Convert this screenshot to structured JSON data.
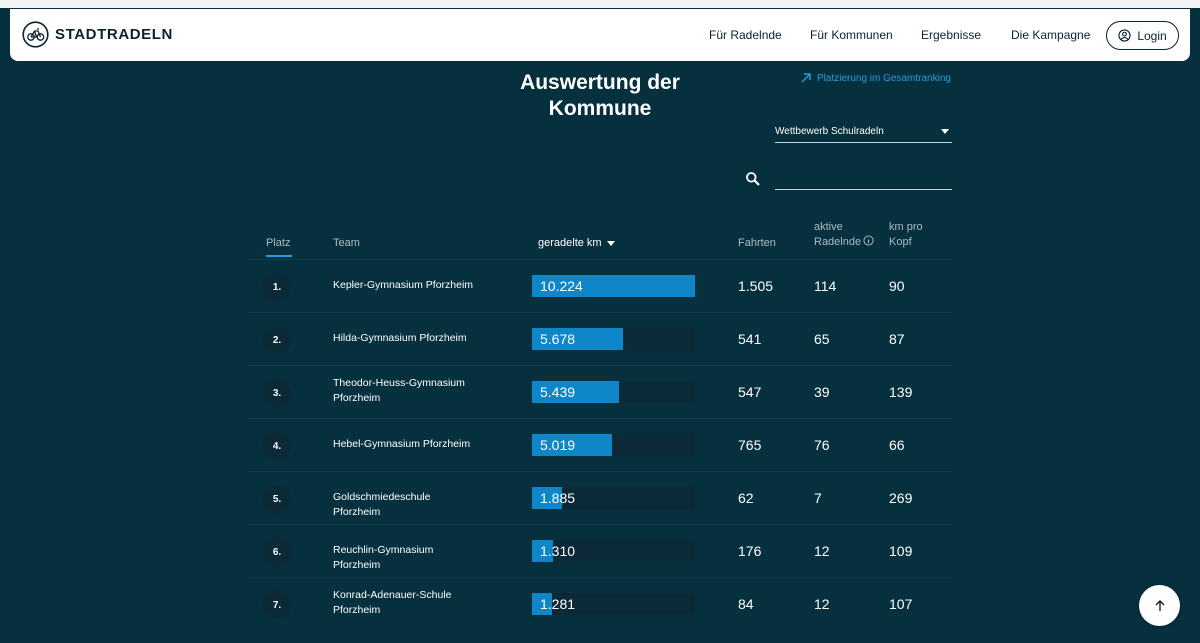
{
  "header": {
    "logo_text": "STADTRADELN",
    "nav": [
      "Für Radelnde",
      "Für Kommunen",
      "Ergebnisse",
      "Die Kampagne"
    ],
    "login_label": "Login"
  },
  "page": {
    "title_line1": "Auswertung der",
    "title_line2": "Kommune",
    "ranking_link": "Platzierung im Gesamtranking",
    "select_value": "Wettbewerb Schulradeln",
    "search_placeholder": ""
  },
  "table": {
    "columns": {
      "platz": "Platz",
      "team": "Team",
      "km": "geradelte km",
      "fahrten": "Fahrten",
      "aktive_line1": "aktive",
      "aktive_line2": "Radelnde",
      "kmpro_line1": "km pro",
      "kmpro_line2": "Kopf"
    },
    "max_km": 10224,
    "rows": [
      {
        "rank": "1.",
        "team": "Kepler-Gymnasium Pforzheim",
        "km": "10.224",
        "km_num": 10224,
        "fahrten": "1.505",
        "aktive": "114",
        "kmpro": "90"
      },
      {
        "rank": "2.",
        "team": "Hilda-Gymnasium Pforzheim",
        "km": "5.678",
        "km_num": 5678,
        "fahrten": "541",
        "aktive": "65",
        "kmpro": "87"
      },
      {
        "rank": "3.",
        "team": "Theodor-Heuss-Gymnasium Pforzheim",
        "km": "5.439",
        "km_num": 5439,
        "fahrten": "547",
        "aktive": "39",
        "kmpro": "139"
      },
      {
        "rank": "4.",
        "team": "Hebel-Gymnasium Pforzheim",
        "km": "5.019",
        "km_num": 5019,
        "fahrten": "765",
        "aktive": "76",
        "kmpro": "66"
      },
      {
        "rank": "5.",
        "team": "Goldschmiedeschule Pforzheim",
        "km": "1.885",
        "km_num": 1885,
        "fahrten": "62",
        "aktive": "7",
        "kmpro": "269"
      },
      {
        "rank": "6.",
        "team": "Reuchlin-Gymnasium Pforzheim",
        "km": "1.310",
        "km_num": 1310,
        "fahrten": "176",
        "aktive": "12",
        "kmpro": "109"
      },
      {
        "rank": "7.",
        "team": "Konrad-Adenauer-Schule Pforzheim",
        "km": "1.281",
        "km_num": 1281,
        "fahrten": "84",
        "aktive": "12",
        "kmpro": "107"
      }
    ]
  },
  "icons": {
    "logo": "bicycle-logo-icon",
    "login": "user-circle-icon",
    "link": "arrow-up-right-icon",
    "search": "search-icon",
    "info": "info-icon",
    "scroll_top": "arrow-up-icon"
  },
  "colors": {
    "background": "#07303f",
    "accent": "#0f86c8",
    "link": "#2b9ad9",
    "header_bg": "#ffffff"
  }
}
